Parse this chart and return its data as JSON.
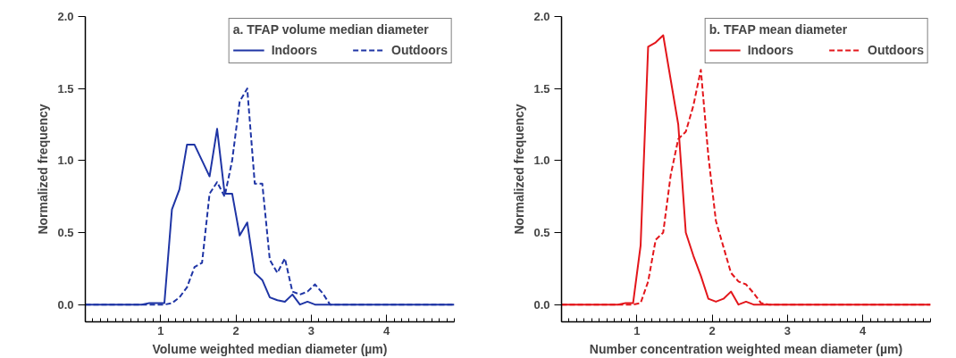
{
  "chart_data": [
    {
      "type": "line",
      "xlabel": "Volume weighted median diameter (µm)",
      "ylabel": "Normalized frequency",
      "legend_title": "a. TFAP volume median diameter",
      "legend": "top right",
      "xlim": [
        0,
        4.9
      ],
      "xticks": [
        1,
        2,
        3,
        4
      ],
      "ylim": [
        -0.12,
        2.0
      ],
      "yticks": [
        {
          "value": 0,
          "label": "0.0"
        },
        {
          "value": 0.5,
          "label": "0.5"
        },
        {
          "value": 1,
          "label": "1.0"
        },
        {
          "value": 1.5,
          "label": "1.5"
        },
        {
          "value": 2,
          "label": "2.0"
        }
      ],
      "grid": false,
      "series": [
        {
          "name": "Indoors",
          "color": "#1f35a5",
          "line_style": "solid",
          "x": [
            0,
            0.75,
            0.85,
            0.95,
            1.05,
            1.15,
            1.25,
            1.35,
            1.45,
            1.55,
            1.65,
            1.75,
            1.85,
            1.95,
            2.05,
            2.15,
            2.25,
            2.35,
            2.45,
            2.55,
            2.65,
            2.75,
            2.85,
            2.95,
            3.05,
            4.9
          ],
          "values": [
            0,
            0,
            0.01,
            0.01,
            0.01,
            0.66,
            0.8,
            1.11,
            1.11,
            1.0,
            0.89,
            1.22,
            0.77,
            0.77,
            0.48,
            0.57,
            0.22,
            0.17,
            0.05,
            0.03,
            0.02,
            0.07,
            0,
            0.02,
            0,
            0
          ]
        },
        {
          "name": "Outdoors",
          "color": "#1f35a5",
          "line_style": "dashed",
          "x": [
            0,
            0.85,
            0.95,
            1.05,
            1.15,
            1.25,
            1.35,
            1.45,
            1.55,
            1.65,
            1.75,
            1.85,
            1.95,
            2.05,
            2.15,
            2.25,
            2.35,
            2.45,
            2.55,
            2.65,
            2.75,
            2.85,
            2.95,
            3.05,
            3.15,
            3.25,
            4.9
          ],
          "values": [
            0,
            0,
            0,
            0,
            0.01,
            0.05,
            0.12,
            0.26,
            0.29,
            0.77,
            0.85,
            0.75,
            1.0,
            1.41,
            1.5,
            0.84,
            0.84,
            0.31,
            0.22,
            0.32,
            0.09,
            0.07,
            0.09,
            0.14,
            0.08,
            0,
            0
          ]
        }
      ]
    },
    {
      "type": "line",
      "xlabel": "Number concentration weighted mean diameter (µm)",
      "ylabel": "Normalized frequency",
      "legend_title": "b. TFAP mean diameter",
      "legend": "top right",
      "xlim": [
        0,
        4.9
      ],
      "xticks": [
        1,
        2,
        3,
        4
      ],
      "ylim": [
        -0.12,
        2.0
      ],
      "yticks": [
        {
          "value": 0,
          "label": "0.0"
        },
        {
          "value": 0.5,
          "label": "0.5"
        },
        {
          "value": 1,
          "label": "1.0"
        },
        {
          "value": 1.5,
          "label": "1.5"
        },
        {
          "value": 2,
          "label": "2.0"
        }
      ],
      "grid": false,
      "series": [
        {
          "name": "Indoors",
          "color": "#e3161b",
          "line_style": "solid",
          "x": [
            0,
            0.75,
            0.85,
            0.95,
            1.05,
            1.15,
            1.25,
            1.35,
            1.45,
            1.55,
            1.65,
            1.75,
            1.85,
            1.95,
            2.05,
            2.15,
            2.25,
            2.35,
            2.45,
            2.55,
            4.9
          ],
          "values": [
            0,
            0,
            0.01,
            0.01,
            0.41,
            1.79,
            1.82,
            1.87,
            1.56,
            1.25,
            0.5,
            0.34,
            0.2,
            0.04,
            0.02,
            0.04,
            0.09,
            0,
            0.02,
            0,
            0
          ]
        },
        {
          "name": "Outdoors",
          "color": "#e3161b",
          "line_style": "dashed",
          "x": [
            0,
            0.95,
            1.05,
            1.15,
            1.25,
            1.35,
            1.45,
            1.55,
            1.65,
            1.75,
            1.85,
            1.95,
            2.05,
            2.15,
            2.25,
            2.35,
            2.45,
            2.55,
            2.65,
            2.75,
            4.9
          ],
          "values": [
            0,
            0,
            0.01,
            0.16,
            0.45,
            0.5,
            0.9,
            1.15,
            1.2,
            1.38,
            1.63,
            1.03,
            0.58,
            0.4,
            0.22,
            0.16,
            0.14,
            0.08,
            0.01,
            0,
            0
          ]
        }
      ]
    }
  ]
}
